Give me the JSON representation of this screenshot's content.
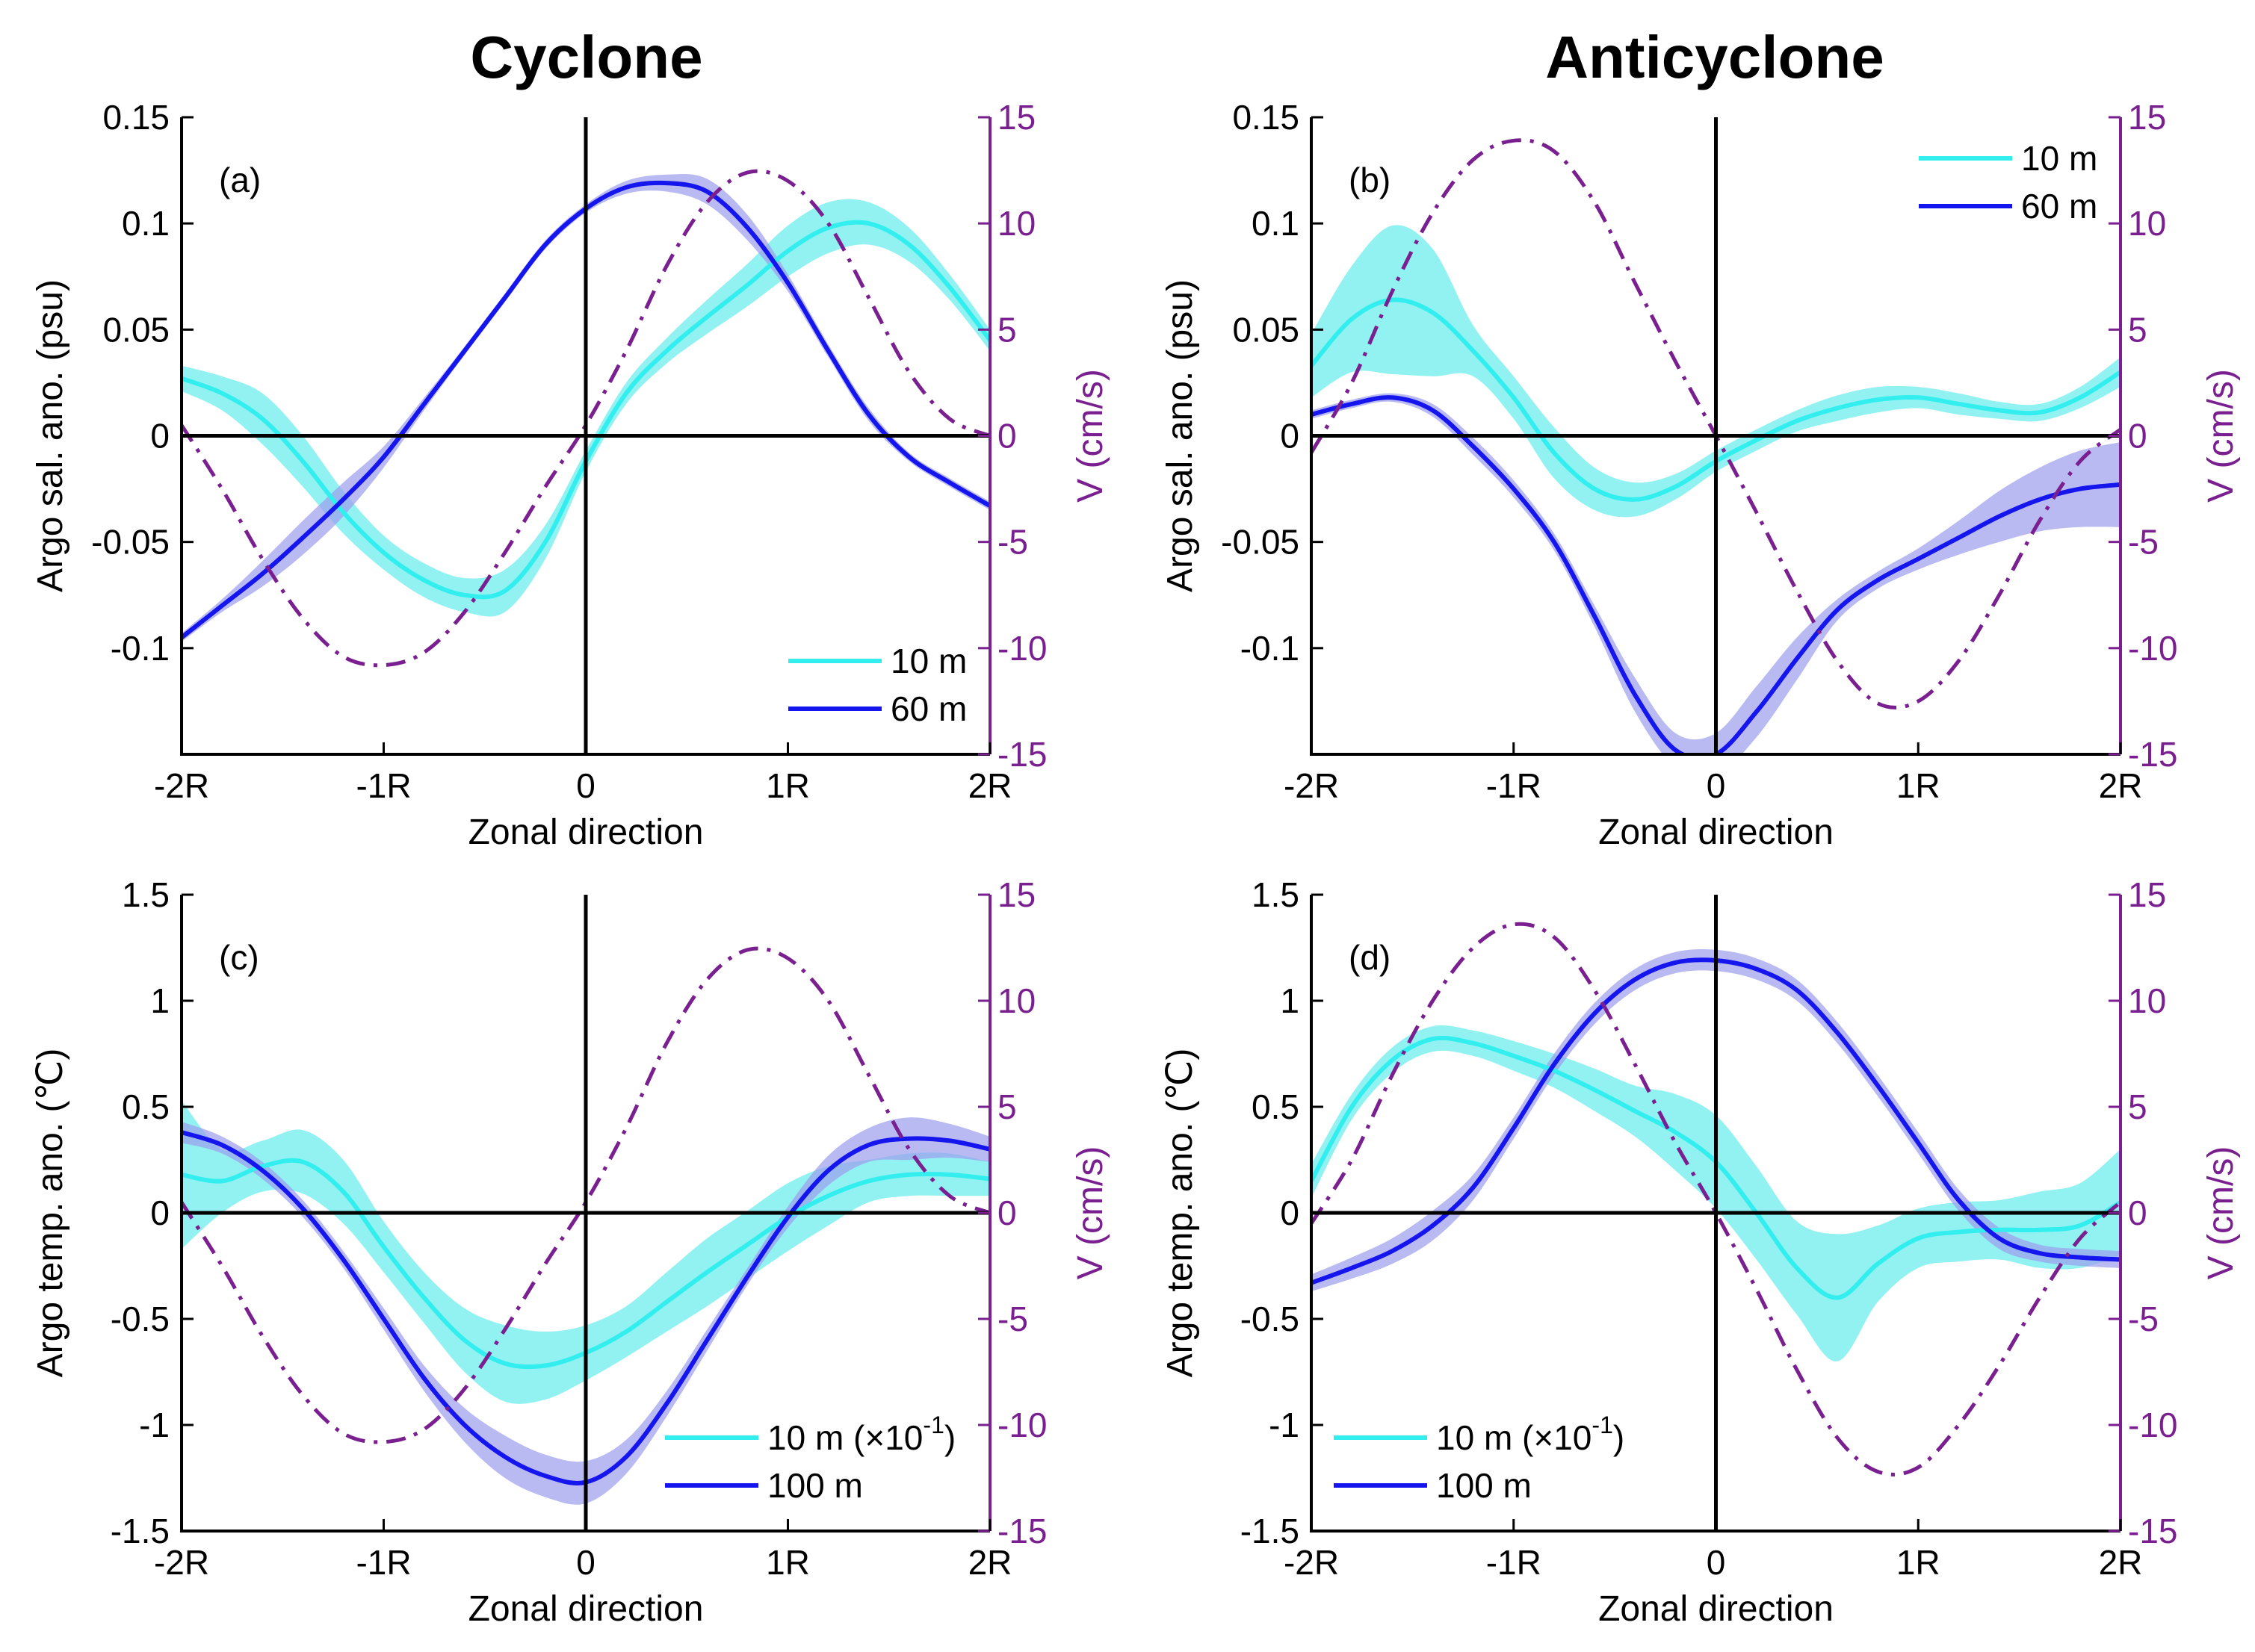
{
  "titles": {
    "left": "Cyclone",
    "right": "Anticyclone"
  },
  "chart_data": [
    {
      "id": "a",
      "type": "line",
      "column": "Cyclone",
      "panel_label": "(a)",
      "xlabel": "Zonal direction",
      "ylabel": "Argo sal. ano. (psu)",
      "y2label": "V (cm/s)",
      "x_ticks": [
        "-2R",
        "-1R",
        "0",
        "1R",
        "2R"
      ],
      "xlim": [
        -2,
        2
      ],
      "ylim": [
        -0.15,
        0.15
      ],
      "yticks": [
        0.15,
        0.1,
        0.05,
        0,
        -0.05,
        -0.1
      ],
      "ytick_labels": [
        "0.15",
        "0.1",
        "0.05",
        "0",
        "-0.05",
        "-0.1"
      ],
      "y2lim": [
        -15,
        15
      ],
      "y2ticks": [
        15,
        10,
        5,
        0,
        -5,
        -10,
        -15
      ],
      "y2tick_labels": [
        "15",
        "10",
        "5",
        "0",
        "-5",
        "-10",
        "-15"
      ],
      "legend": {
        "position": "bottom-right",
        "entries": [
          "10 m",
          "60 m"
        ]
      },
      "series": [
        {
          "name": "10 m",
          "color": "#33eeee",
          "x": [
            -2,
            -1.8,
            -1.6,
            -1.4,
            -1.2,
            -1,
            -0.8,
            -0.6,
            -0.4,
            -0.2,
            0,
            0.2,
            0.4,
            0.6,
            0.8,
            1,
            1.2,
            1.4,
            1.6,
            1.8,
            2
          ],
          "y": [
            0.027,
            0.02,
            0.008,
            -0.012,
            -0.036,
            -0.055,
            -0.068,
            -0.075,
            -0.073,
            -0.05,
            -0.012,
            0.02,
            0.04,
            0.056,
            0.071,
            0.087,
            0.098,
            0.1,
            0.09,
            0.07,
            0.045
          ],
          "band": [
            0.006,
            0.008,
            0.012,
            0.012,
            0.01,
            0.008,
            0.008,
            0.008,
            0.01,
            0.008,
            0.005,
            0.005,
            0.006,
            0.008,
            0.01,
            0.012,
            0.012,
            0.01,
            0.008,
            0.006,
            0.005
          ]
        },
        {
          "name": "60 m",
          "color": "#1515ee",
          "x": [
            -2,
            -1.8,
            -1.6,
            -1.4,
            -1.2,
            -1,
            -0.8,
            -0.6,
            -0.4,
            -0.2,
            0,
            0.2,
            0.4,
            0.6,
            0.8,
            1,
            1.2,
            1.4,
            1.6,
            1.8,
            2
          ],
          "y": [
            -0.095,
            -0.08,
            -0.065,
            -0.048,
            -0.03,
            -0.01,
            0.015,
            0.04,
            0.065,
            0.09,
            0.107,
            0.117,
            0.119,
            0.115,
            0.098,
            0.072,
            0.04,
            0.01,
            -0.01,
            -0.022,
            -0.033
          ],
          "band": [
            0.002,
            0.003,
            0.006,
            0.008,
            0.008,
            0.005,
            0.003,
            0.002,
            0.002,
            0.002,
            0.002,
            0.003,
            0.004,
            0.006,
            0.006,
            0.004,
            0.003,
            0.003,
            0.002,
            0.002,
            0.002
          ]
        },
        {
          "name": "V",
          "color": "#7a1f8f",
          "axis": "right",
          "style": "dash-dot",
          "x": [
            -2,
            -1.8,
            -1.6,
            -1.4,
            -1.2,
            -1,
            -0.8,
            -0.6,
            -0.4,
            -0.2,
            0,
            0.2,
            0.4,
            0.6,
            0.8,
            1,
            1.2,
            1.4,
            1.6,
            1.8,
            2
          ],
          "y": [
            0.5,
            -2.5,
            -5.8,
            -8.6,
            -10.4,
            -10.8,
            -10.2,
            -8.3,
            -5.5,
            -2.4,
            0.5,
            4,
            8,
            11,
            12.4,
            12,
            10,
            6.5,
            3,
            0.8,
            0
          ]
        }
      ]
    },
    {
      "id": "b",
      "type": "line",
      "column": "Anticyclone",
      "panel_label": "(b)",
      "xlabel": "Zonal direction",
      "ylabel": "Argo sal. ano. (psu)",
      "y2label": "V (cm/s)",
      "x_ticks": [
        "-2R",
        "-1R",
        "0",
        "1R",
        "2R"
      ],
      "xlim": [
        -2,
        2
      ],
      "ylim": [
        -0.15,
        0.15
      ],
      "yticks": [
        0.15,
        0.1,
        0.05,
        0,
        -0.05,
        -0.1
      ],
      "ytick_labels": [
        "0.15",
        "0.1",
        "0.05",
        "0",
        "-0.05",
        "-0.1"
      ],
      "y2lim": [
        -15,
        15
      ],
      "y2ticks": [
        15,
        10,
        5,
        0,
        -5,
        -10,
        -15
      ],
      "y2tick_labels": [
        "15",
        "10",
        "5",
        "0",
        "-5",
        "-10",
        "-15"
      ],
      "legend": {
        "position": "top-right",
        "entries": [
          "10 m",
          "60 m"
        ]
      },
      "series": [
        {
          "name": "10 m",
          "color": "#33eeee",
          "x": [
            -2,
            -1.8,
            -1.6,
            -1.4,
            -1.2,
            -1,
            -0.8,
            -0.6,
            -0.4,
            -0.2,
            0,
            0.2,
            0.4,
            0.6,
            0.8,
            1,
            1.2,
            1.4,
            1.6,
            1.8,
            2
          ],
          "y": [
            0.033,
            0.055,
            0.064,
            0.058,
            0.04,
            0.018,
            -0.008,
            -0.025,
            -0.03,
            -0.024,
            -0.012,
            -0.002,
            0.007,
            0.013,
            0.017,
            0.018,
            0.015,
            0.012,
            0.011,
            0.018,
            0.03
          ],
          "band": [
            0.015,
            0.025,
            0.035,
            0.03,
            0.012,
            0.01,
            0.012,
            0.01,
            0.008,
            0.006,
            0.005,
            0.005,
            0.005,
            0.006,
            0.006,
            0.005,
            0.005,
            0.004,
            0.004,
            0.005,
            0.007
          ]
        },
        {
          "name": "60 m",
          "color": "#1515ee",
          "x": [
            -2,
            -1.8,
            -1.6,
            -1.4,
            -1.2,
            -1,
            -0.8,
            -0.6,
            -0.4,
            -0.2,
            0,
            0.2,
            0.4,
            0.6,
            0.8,
            1,
            1.2,
            1.4,
            1.6,
            1.8,
            2
          ],
          "y": [
            0.01,
            0.015,
            0.018,
            0.012,
            -0.005,
            -0.025,
            -0.05,
            -0.085,
            -0.122,
            -0.148,
            -0.15,
            -0.13,
            -0.105,
            -0.082,
            -0.068,
            -0.058,
            -0.048,
            -0.038,
            -0.03,
            -0.025,
            -0.023
          ],
          "band": [
            0.002,
            0.002,
            0.002,
            0.003,
            0.004,
            0.004,
            0.004,
            0.005,
            0.008,
            0.008,
            0.01,
            0.012,
            0.01,
            0.005,
            0.004,
            0.005,
            0.008,
            0.012,
            0.015,
            0.018,
            0.02
          ]
        },
        {
          "name": "V",
          "color": "#7a1f8f",
          "axis": "right",
          "style": "dash-dot",
          "x": [
            -2,
            -1.8,
            -1.6,
            -1.4,
            -1.2,
            -1,
            -0.8,
            -0.6,
            -0.4,
            -0.2,
            0,
            0.2,
            0.4,
            0.6,
            0.8,
            1,
            1.2,
            1.4,
            1.6,
            1.8,
            2
          ],
          "y": [
            -0.8,
            2.5,
            6.8,
            10.5,
            13,
            13.9,
            13.4,
            11,
            7.2,
            3.5,
            0,
            -3.6,
            -7.3,
            -10.6,
            -12.6,
            -12.5,
            -10.6,
            -7.5,
            -4,
            -1.2,
            0.3
          ]
        }
      ]
    },
    {
      "id": "c",
      "type": "line",
      "column": "Cyclone",
      "panel_label": "(c)",
      "xlabel": "Zonal direction",
      "ylabel": "Argo temp. ano. (℃)",
      "y2label": "V (cm/s)",
      "x_ticks": [
        "-2R",
        "-1R",
        "0",
        "1R",
        "2R"
      ],
      "xlim": [
        -2,
        2
      ],
      "ylim": [
        -1.5,
        1.5
      ],
      "yticks": [
        1.5,
        1,
        0.5,
        0,
        -0.5,
        -1,
        -1.5
      ],
      "ytick_labels": [
        "1.5",
        "1",
        "0.5",
        "0",
        "-0.5",
        "-1",
        "-1.5"
      ],
      "y2lim": [
        -15,
        15
      ],
      "y2ticks": [
        15,
        10,
        5,
        0,
        -5,
        -10,
        -15
      ],
      "y2tick_labels": [
        "15",
        "10",
        "5",
        "0",
        "-5",
        "-10",
        "-15"
      ],
      "legend": {
        "position": "bottom-right",
        "entries": [
          "10 m (×10",
          "-1",
          ")",
          "100 m"
        ]
      },
      "series": [
        {
          "name": "10 m (×10-1)",
          "color": "#33eeee",
          "x": [
            -2,
            -1.8,
            -1.6,
            -1.4,
            -1.2,
            -1,
            -0.8,
            -0.6,
            -0.4,
            -0.2,
            0,
            0.2,
            0.4,
            0.6,
            0.8,
            1,
            1.2,
            1.4,
            1.6,
            1.8,
            2
          ],
          "y": [
            0.18,
            0.15,
            0.22,
            0.24,
            0.1,
            -0.16,
            -0.4,
            -0.6,
            -0.71,
            -0.72,
            -0.66,
            -0.56,
            -0.42,
            -0.28,
            -0.15,
            -0.02,
            0.08,
            0.15,
            0.18,
            0.18,
            0.16
          ],
          "band": [
            0.35,
            0.15,
            0.12,
            0.15,
            0.15,
            0.12,
            0.12,
            0.15,
            0.18,
            0.16,
            0.13,
            0.12,
            0.14,
            0.16,
            0.16,
            0.16,
            0.14,
            0.1,
            0.1,
            0.1,
            0.08
          ]
        },
        {
          "name": "100 m",
          "color": "#1515ee",
          "x": [
            -2,
            -1.8,
            -1.6,
            -1.4,
            -1.2,
            -1,
            -0.8,
            -0.6,
            -0.4,
            -0.2,
            0,
            0.2,
            0.4,
            0.6,
            0.8,
            1,
            1.2,
            1.4,
            1.6,
            1.8,
            2
          ],
          "y": [
            0.38,
            0.32,
            0.2,
            0.02,
            -0.22,
            -0.5,
            -0.78,
            -1.0,
            -1.15,
            -1.24,
            -1.27,
            -1.15,
            -0.9,
            -0.6,
            -0.3,
            -0.02,
            0.2,
            0.32,
            0.35,
            0.34,
            0.3
          ],
          "band": [
            0.05,
            0.04,
            0.04,
            0.04,
            0.04,
            0.05,
            0.06,
            0.08,
            0.1,
            0.1,
            0.1,
            0.08,
            0.06,
            0.05,
            0.04,
            0.05,
            0.07,
            0.08,
            0.1,
            0.08,
            0.06
          ]
        },
        {
          "name": "V",
          "color": "#7a1f8f",
          "axis": "right",
          "style": "dash-dot",
          "x": [
            -2,
            -1.8,
            -1.6,
            -1.4,
            -1.2,
            -1,
            -0.8,
            -0.6,
            -0.4,
            -0.2,
            0,
            0.2,
            0.4,
            0.6,
            0.8,
            1,
            1.2,
            1.4,
            1.6,
            1.8,
            2
          ],
          "y": [
            0.5,
            -2.5,
            -5.8,
            -8.6,
            -10.4,
            -10.8,
            -10.2,
            -8.3,
            -5.5,
            -2.4,
            0.5,
            4,
            8,
            11,
            12.4,
            12,
            10,
            6.5,
            3,
            0.8,
            0
          ]
        }
      ]
    },
    {
      "id": "d",
      "type": "line",
      "column": "Anticyclone",
      "panel_label": "(d)",
      "xlabel": "Zonal direction",
      "ylabel": "Argo temp. ano. (℃)",
      "y2label": "V (cm/s)",
      "x_ticks": [
        "-2R",
        "-1R",
        "0",
        "1R",
        "2R"
      ],
      "xlim": [
        -2,
        2
      ],
      "ylim": [
        -1.5,
        1.5
      ],
      "yticks": [
        1.5,
        1,
        0.5,
        0,
        -0.5,
        -1,
        -1.5
      ],
      "ytick_labels": [
        "1.5",
        "1",
        "0.5",
        "0",
        "-0.5",
        "-1",
        "-1.5"
      ],
      "y2lim": [
        -15,
        15
      ],
      "y2ticks": [
        15,
        10,
        5,
        0,
        -5,
        -10,
        -15
      ],
      "y2tick_labels": [
        "15",
        "10",
        "5",
        "0",
        "-5",
        "-10",
        "-15"
      ],
      "legend": {
        "position": "bottom-left",
        "entries": [
          "10 m (×10",
          "-1",
          ")",
          "100 m"
        ]
      },
      "series": [
        {
          "name": "10 m (×10-1)",
          "color": "#33eeee",
          "x": [
            -2,
            -1.8,
            -1.6,
            -1.4,
            -1.2,
            -1,
            -0.8,
            -0.6,
            -0.4,
            -0.2,
            0,
            0.2,
            0.4,
            0.6,
            0.8,
            1,
            1.2,
            1.4,
            1.6,
            1.8,
            2
          ],
          "y": [
            0.15,
            0.5,
            0.72,
            0.82,
            0.8,
            0.74,
            0.67,
            0.58,
            0.48,
            0.38,
            0.24,
            0.0,
            -0.26,
            -0.4,
            -0.24,
            -0.12,
            -0.09,
            -0.08,
            -0.08,
            -0.06,
            0.05
          ],
          "band": [
            0.08,
            0.06,
            0.06,
            0.06,
            0.06,
            0.07,
            0.08,
            0.1,
            0.12,
            0.18,
            0.22,
            0.22,
            0.22,
            0.3,
            0.18,
            0.14,
            0.14,
            0.14,
            0.18,
            0.2,
            0.25
          ]
        },
        {
          "name": "100 m",
          "color": "#1515ee",
          "x": [
            -2,
            -1.8,
            -1.6,
            -1.4,
            -1.2,
            -1,
            -0.8,
            -0.6,
            -0.4,
            -0.2,
            0,
            0.2,
            0.4,
            0.6,
            0.8,
            1,
            1.2,
            1.4,
            1.6,
            1.8,
            2
          ],
          "y": [
            -0.33,
            -0.26,
            -0.18,
            -0.06,
            0.12,
            0.4,
            0.7,
            0.94,
            1.1,
            1.18,
            1.19,
            1.15,
            1.05,
            0.85,
            0.6,
            0.33,
            0.06,
            -0.12,
            -0.19,
            -0.21,
            -0.22
          ],
          "band": [
            0.04,
            0.05,
            0.06,
            0.07,
            0.06,
            0.05,
            0.05,
            0.05,
            0.05,
            0.05,
            0.05,
            0.05,
            0.05,
            0.05,
            0.05,
            0.05,
            0.05,
            0.05,
            0.04,
            0.04,
            0.04
          ]
        },
        {
          "name": "V",
          "color": "#7a1f8f",
          "axis": "right",
          "style": "dash-dot",
          "x": [
            -2,
            -1.8,
            -1.6,
            -1.4,
            -1.2,
            -1,
            -0.8,
            -0.6,
            -0.4,
            -0.2,
            0,
            0.2,
            0.4,
            0.6,
            0.8,
            1,
            1.2,
            1.4,
            1.6,
            1.8,
            2
          ],
          "y": [
            -0.5,
            2.5,
            6.5,
            10,
            12.5,
            13.6,
            13,
            10.5,
            7,
            3.3,
            0,
            -3.6,
            -7.4,
            -10.6,
            -12.2,
            -12,
            -10,
            -7.2,
            -4,
            -1.2,
            0.5
          ]
        }
      ]
    }
  ]
}
